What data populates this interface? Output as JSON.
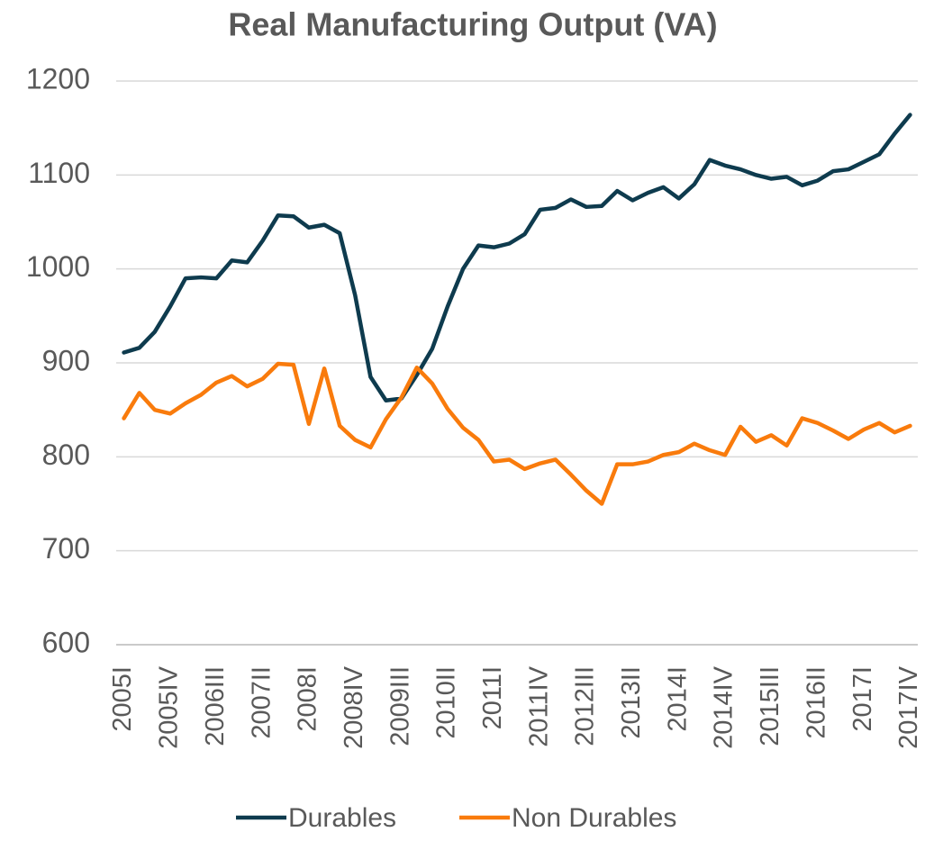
{
  "chart_data": {
    "type": "line",
    "title": "Real Manufacturing Output (VA)",
    "categories": [
      "2005I",
      null,
      null,
      "2005IV",
      null,
      null,
      "2006III",
      null,
      null,
      "2007II",
      null,
      null,
      "2008I",
      null,
      null,
      "2008IV",
      null,
      null,
      "2009III",
      null,
      null,
      "2010II",
      null,
      null,
      "2011I",
      null,
      null,
      "2011IV",
      null,
      null,
      "2012III",
      null,
      null,
      "2013II",
      null,
      null,
      "2014I",
      null,
      null,
      "2014IV",
      null,
      null,
      "2015III",
      null,
      null,
      "2016II",
      null,
      null,
      "2017I",
      null,
      null,
      "2017IV"
    ],
    "series": [
      {
        "name": "Durables",
        "color": "#0e3b4e",
        "values": [
          911,
          916,
          933,
          960,
          990,
          991,
          990,
          1009,
          1007,
          1030,
          1057,
          1056,
          1044,
          1047,
          1038,
          972,
          885,
          860,
          862,
          887,
          915,
          960,
          1000,
          1025,
          1023,
          1027,
          1037,
          1063,
          1065,
          1074,
          1066,
          1067,
          1083,
          1073,
          1081,
          1087,
          1075,
          1090,
          1116,
          1110,
          1106,
          1100,
          1096,
          1098,
          1089,
          1094,
          1104,
          1106,
          1114,
          1122,
          1144,
          1164
        ]
      },
      {
        "name": "Non Durables",
        "color": "#f97b0c",
        "values": [
          841,
          868,
          850,
          846,
          857,
          866,
          879,
          886,
          875,
          883,
          899,
          898,
          835,
          894,
          833,
          818,
          810,
          840,
          863,
          895,
          878,
          851,
          831,
          818,
          795,
          797,
          787,
          793,
          797,
          781,
          764,
          750,
          792,
          792,
          795,
          802,
          805,
          814,
          807,
          802,
          832,
          816,
          823,
          812,
          841,
          836,
          828,
          819,
          829,
          836,
          826,
          833
        ]
      }
    ],
    "ylim": [
      600,
      1200
    ],
    "yticks": [
      600,
      700,
      800,
      900,
      1000,
      1100,
      1200
    ],
    "grid": true,
    "legend": "bottom"
  }
}
